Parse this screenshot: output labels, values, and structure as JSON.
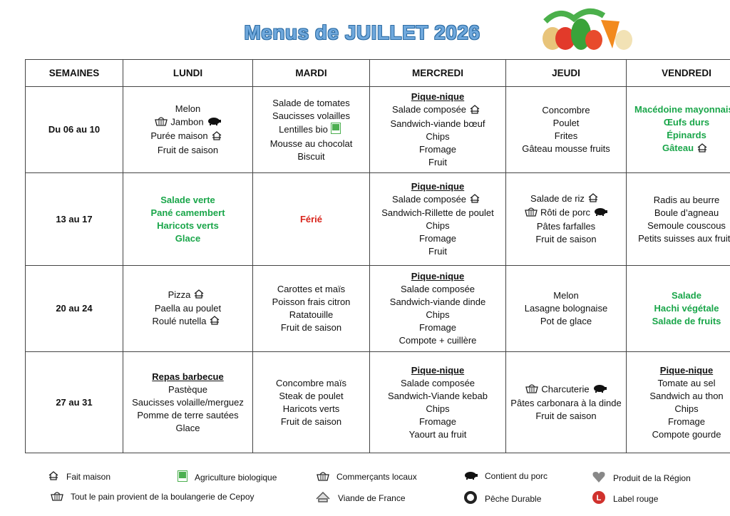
{
  "header": {
    "title": "Menus de JUILLET 2026"
  },
  "table": {
    "columns": [
      "SEMAINES",
      "LUNDI",
      "MARDI",
      "MERCREDI",
      "JEUDI",
      "VENDREDI"
    ],
    "rows": [
      [
        "Du 06 au 10",
        [
          "Melon",
          "Jambon",
          "Purée maison",
          "Fruit de saison"
        ],
        [
          "Salade de tomates",
          "Saucisses volailles",
          "Lentilles bio",
          "Mousse au chocolat",
          "Biscuit"
        ],
        [
          "Pique-nique",
          "Salade composée",
          "Sandwich-viande bœuf",
          "Chips",
          "Fromage",
          "Fruit"
        ],
        [
          "Concombre",
          "Poulet",
          "Frites",
          "Gâteau mousse fruits"
        ],
        [
          "Macédoine mayonnaise",
          "Œufs durs",
          "Épinards",
          "Gâteau"
        ]
      ],
      [
        "13 au 17",
        [
          "Salade verte",
          "Pané camembert",
          "Haricots verts",
          "Glace"
        ],
        [
          "Férié"
        ],
        [
          "Pique-nique",
          "Salade composée",
          "Sandwich-Rillette de poulet",
          "Chips",
          "Fromage",
          "Fruit"
        ],
        [
          "Salade de riz",
          "Rôti de porc",
          "Pâtes farfalles",
          "Fruit de saison"
        ],
        [
          "Radis au beurre",
          "Boule d’agneau",
          "Semoule couscous",
          "Petits suisses aux fruits"
        ]
      ],
      [
        "20 au 24",
        [
          "Pizza",
          "Paella au poulet",
          "Roulé nutella"
        ],
        [
          "Carottes et maïs",
          "Poisson frais citron",
          "Ratatouille",
          "Fruit de saison"
        ],
        [
          "Pique-nique",
          "Salade composée",
          "Sandwich-viande dinde",
          "Chips",
          "Fromage",
          "Compote + cuillère"
        ],
        [
          "Melon",
          "Lasagne bolognaise",
          "Pot de glace"
        ],
        [
          "Salade",
          "Hachi végétale",
          "Salade de fruits"
        ]
      ],
      [
        "27 au 31",
        [
          "Repas barbecue",
          "Pastèque",
          "Saucisses volaille/merguez",
          "Pomme de terre sautées",
          "Glace"
        ],
        [
          "Concombre maïs",
          "Steak de poulet",
          "Haricots verts",
          "Fruit de saison"
        ],
        [
          "Pique-nique",
          "Salade composée",
          "Sandwich-Viande kebab",
          "Chips",
          "Fromage",
          "Yaourt au fruit"
        ],
        [
          "Charcuterie",
          "Pâtes carbonara à la dinde",
          "Fruit de saison"
        ],
        [
          "Pique-nique",
          "Tomate au sel",
          "Sandwich au thon",
          "Chips",
          "Fromage",
          "Compote gourde"
        ]
      ]
    ]
  },
  "legend": [
    "Fait maison",
    "Agriculture biologique",
    "Commerçants locaux",
    "Contient du porc",
    "Produit de la Région",
    "Tout le pain provient de la boulangerie de Cepoy",
    "Viande de France",
    "Pêche Durable",
    "Label rouge"
  ]
}
